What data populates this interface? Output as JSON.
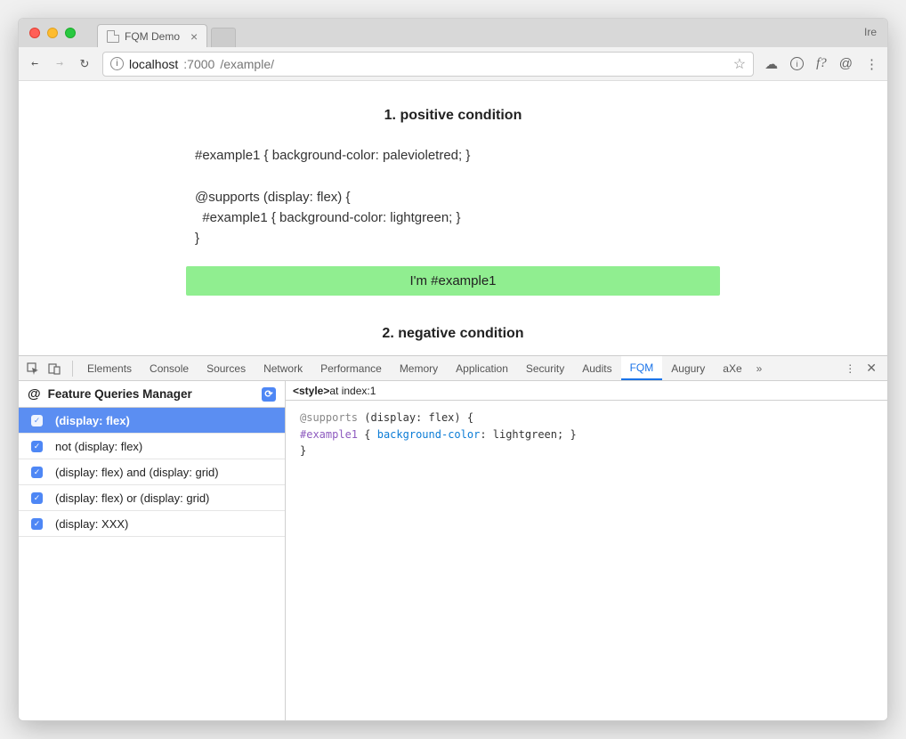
{
  "window": {
    "tab_title": "FQM Demo",
    "user_label": "Ire"
  },
  "toolbar": {
    "url_host": "localhost",
    "url_port": ":7000",
    "url_path": "/example/"
  },
  "page": {
    "section1_title": "1. positive condition",
    "code1_line1": "#example1 { background-color: palevioletred; }",
    "code1_line2": "",
    "code1_line3": "@supports (display: flex) {",
    "code1_line4": "  #example1 { background-color: lightgreen; }",
    "code1_line5": "}",
    "example1_text": "I'm #example1",
    "example1_bg": "#90ee90",
    "section2_title": "2. negative condition"
  },
  "devtools": {
    "tabs": [
      "Elements",
      "Console",
      "Sources",
      "Network",
      "Performance",
      "Memory",
      "Application",
      "Security",
      "Audits",
      "FQM",
      "Augury",
      "aXe"
    ],
    "active_tab": "FQM",
    "panel_title": "Feature Queries Manager",
    "queries": [
      {
        "label": "(display: flex)",
        "checked": true,
        "selected": true
      },
      {
        "label": "not (display: flex)",
        "checked": true,
        "selected": false
      },
      {
        "label": "(display: flex) and (display: grid)",
        "checked": true,
        "selected": false
      },
      {
        "label": "(display: flex) or (display: grid)",
        "checked": true,
        "selected": false
      },
      {
        "label": "(display: XXX)",
        "checked": true,
        "selected": false
      }
    ],
    "source_header_prefix": "<style>",
    "source_header_suffix": " at index:1",
    "code": {
      "l1_a": "@supports",
      "l1_b": " (display: flex) {",
      "l2_a": "  #example1",
      "l2_b": " { ",
      "l2_c": "background-color",
      "l2_d": ": lightgreen; }",
      "l3": "}"
    }
  }
}
